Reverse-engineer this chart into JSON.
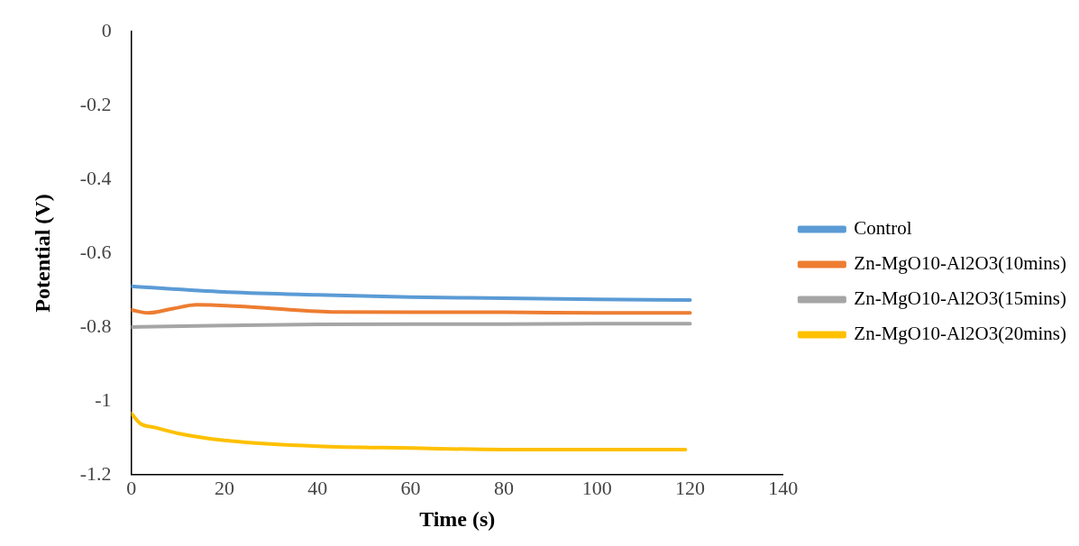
{
  "chart_data": {
    "type": "line",
    "xlabel": "Time (s)",
    "ylabel": "Potential (V)",
    "xlim": [
      0,
      140
    ],
    "xticks": [
      0,
      20,
      40,
      60,
      80,
      100,
      120,
      140
    ],
    "ylim": [
      -1.2,
      0
    ],
    "yticks": [
      -1.2,
      -1,
      -0.8,
      -0.6,
      -0.4,
      -0.2,
      0
    ],
    "grid": false,
    "legend": "right",
    "marker": "none",
    "line_style": "solid",
    "series": [
      {
        "name": "Control",
        "color": "#5b9bd5",
        "x": [
          0,
          20,
          40,
          60,
          80,
          100,
          120
        ],
        "values": [
          -0.69,
          -0.705,
          -0.713,
          -0.719,
          -0.722,
          -0.725,
          -0.727
        ]
      },
      {
        "name": "Zn-MgO10-Al2O3(10mins)",
        "color": "#ed7d31",
        "x": [
          0,
          3.6,
          9,
          14,
          25,
          43,
          60,
          80,
          100,
          120
        ],
        "values": [
          -0.754,
          -0.762,
          -0.75,
          -0.74,
          -0.745,
          -0.759,
          -0.76,
          -0.76,
          -0.762,
          -0.762
        ]
      },
      {
        "name": "Zn-MgO10-Al2O3(15mins)",
        "color": "#a5a5a5",
        "x": [
          0,
          20,
          40,
          60,
          80,
          100,
          120
        ],
        "values": [
          -0.8,
          -0.796,
          -0.793,
          -0.792,
          -0.792,
          -0.791,
          -0.791
        ]
      },
      {
        "name": "Zn-MgO10-Al2O3(20mins)",
        "color": "#ffc000",
        "x": [
          0,
          2,
          5,
          10,
          20,
          40,
          60,
          80,
          100,
          119
        ],
        "values": [
          -1.034,
          -1.062,
          -1.072,
          -1.088,
          -1.107,
          -1.123,
          -1.128,
          -1.132,
          -1.132,
          -1.132
        ]
      }
    ]
  }
}
